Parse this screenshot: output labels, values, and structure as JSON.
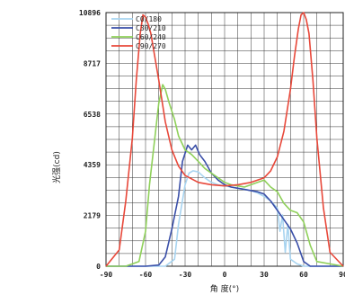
{
  "chart_data": {
    "type": "line",
    "xlabel": "角 度(°)",
    "ylabel": "光强(cd)",
    "xlim": [
      -90,
      90
    ],
    "ylim": [
      0,
      10896
    ],
    "x_ticks": [
      "-90",
      "-60",
      "-30",
      "0",
      "30",
      "60",
      "90"
    ],
    "y_ticks": [
      "0",
      "2179",
      "4359",
      "6538",
      "8717",
      "10896"
    ],
    "grid": true,
    "legend_position": "top-left",
    "series": [
      {
        "name": "C0/180",
        "color": "#a8d4f0",
        "x": [
          -90,
          -60,
          -45,
          -38,
          -35,
          -30,
          -27,
          -24,
          -20,
          -15,
          -10,
          -5,
          0,
          5,
          10,
          15,
          20,
          25,
          30,
          35,
          40,
          42,
          44,
          46,
          48,
          50,
          55,
          60,
          70,
          90
        ],
        "y": [
          0,
          0,
          0,
          300,
          1800,
          3500,
          4000,
          4100,
          4050,
          3800,
          3600,
          3500,
          3450,
          3400,
          3350,
          3300,
          3250,
          3150,
          3000,
          2800,
          2500,
          1500,
          2200,
          600,
          1800,
          300,
          100,
          0,
          0,
          0
        ]
      },
      {
        "name": "C30/210",
        "color": "#3a4fa8",
        "x": [
          -90,
          -60,
          -50,
          -45,
          -40,
          -35,
          -32,
          -28,
          -25,
          -22,
          -19,
          -15,
          -10,
          -5,
          0,
          5,
          10,
          15,
          20,
          25,
          30,
          35,
          40,
          45,
          50,
          55,
          60,
          65,
          70,
          90
        ],
        "y": [
          0,
          0,
          50,
          400,
          1600,
          3000,
          4500,
          5200,
          5000,
          5200,
          4800,
          4500,
          4000,
          3700,
          3500,
          3400,
          3350,
          3300,
          3250,
          3200,
          3100,
          2800,
          2400,
          2000,
          1600,
          1000,
          200,
          0,
          0,
          0
        ]
      },
      {
        "name": "C60/240",
        "color": "#8fd05a",
        "x": [
          -90,
          -75,
          -65,
          -60,
          -57,
          -53,
          -50,
          -47,
          -45,
          -42,
          -38,
          -35,
          -30,
          -25,
          -20,
          -15,
          -10,
          -5,
          0,
          5,
          10,
          15,
          20,
          25,
          30,
          35,
          40,
          45,
          50,
          55,
          60,
          65,
          70,
          90
        ],
        "y": [
          0,
          0,
          200,
          1500,
          3500,
          5500,
          7000,
          7800,
          7600,
          7000,
          6300,
          5600,
          5000,
          4800,
          4500,
          4200,
          4000,
          3800,
          3600,
          3500,
          3450,
          3400,
          3500,
          3600,
          3700,
          3400,
          3200,
          2700,
          2400,
          2300,
          1900,
          900,
          200,
          0
        ]
      },
      {
        "name": "C90/270",
        "color": "#e8483a",
        "x": [
          -90,
          -80,
          -75,
          -70,
          -67,
          -64,
          -62,
          -60,
          -58,
          -56,
          -53,
          -50,
          -45,
          -40,
          -35,
          -30,
          -20,
          -10,
          0,
          10,
          20,
          30,
          35,
          40,
          45,
          50,
          53,
          56,
          58,
          60,
          62,
          64,
          67,
          70,
          75,
          80,
          90
        ],
        "y": [
          0,
          700,
          2800,
          5500,
          8000,
          10000,
          10800,
          10700,
          10400,
          10000,
          9000,
          8000,
          6200,
          5000,
          4300,
          3900,
          3600,
          3500,
          3450,
          3500,
          3600,
          3800,
          4100,
          4700,
          5800,
          7600,
          9000,
          10200,
          10800,
          10896,
          10600,
          10000,
          8000,
          5500,
          2500,
          600,
          0
        ]
      }
    ]
  }
}
